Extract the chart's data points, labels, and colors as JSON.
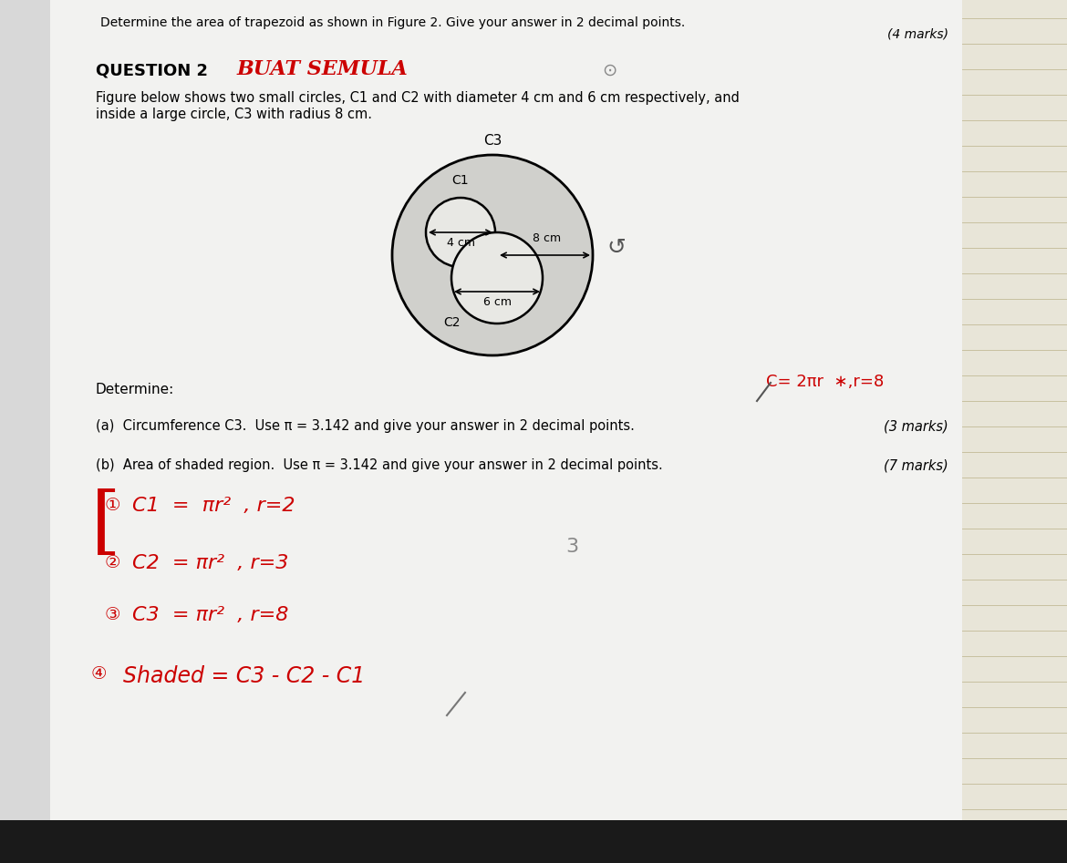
{
  "bg_color": "#e8e8e8",
  "paper_color": "#f0f0f0",
  "top_text": "Determine the area of trapezoid as shown in Figure 2. Give your answer in 2 decimal points.",
  "marks_top": "(4 marks)",
  "question_label": "QUESTION 2",
  "buat_semula": "BUAT SEMULA",
  "fig_desc_line1": "Figure below shows two small circles, C1 and C2 with diameter 4 cm and 6 cm respectively, and",
  "fig_desc_line2": "inside a large circle, C3 with radius 8 cm.",
  "c3_label": "C3",
  "c1_label": "C1",
  "c2_label": "C2",
  "dim_4cm": "4 cm",
  "dim_6cm": "6 cm",
  "dim_8cm": "8 cm",
  "determine_text": "Determine:",
  "part_a": "(a)  Circumference C3.  Use π = 3.142 and give your answer in 2 decimal points.",
  "marks_a": "(3 marks)",
  "part_b": "(b)  Area of shaded region.  Use π = 3.142 and give your answer in 2 decimal points.",
  "marks_b": "(7 marks)",
  "handwritten_note": "C= 2πr  ∗,r=8",
  "step1": "①C1  =  πr²  , r=2",
  "step2": "②  C2  = πr²  , r=3",
  "step3": "③  C3  = πr²  , r=8",
  "step4": "④  Shaded = C3 - C2 - C1",
  "num_3": "3"
}
